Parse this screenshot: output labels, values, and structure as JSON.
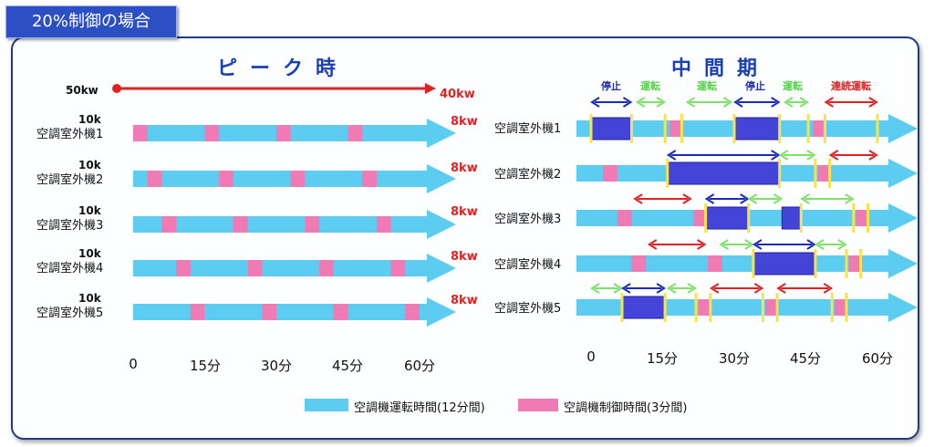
{
  "badge": "20%制御の場合",
  "left": {
    "title": "ピーク時",
    "scale_start": "50kw",
    "scale_end": "40kw",
    "units": [
      {
        "label": "空調室外機1",
        "cap": "10k",
        "kw": "8kw",
        "pink": [
          0
        ]
      },
      {
        "label": "空調室外機2",
        "cap": "10k",
        "kw": "8kw",
        "pink": [
          3
        ]
      },
      {
        "label": "空調室外機3",
        "cap": "10k",
        "kw": "8kw",
        "pink": [
          6
        ]
      },
      {
        "label": "空調室外機4",
        "cap": "10k",
        "kw": "8kw",
        "pink": [
          9
        ]
      },
      {
        "label": "空調室外機5",
        "cap": "10k",
        "kw": "8kw",
        "pink": [
          12
        ]
      }
    ],
    "ticks": [
      "0",
      "15分",
      "30分",
      "45分",
      "60分"
    ]
  },
  "right": {
    "title": "中間期",
    "annotations": {
      "stop": "停止",
      "run": "運転",
      "continuous": "連続運転"
    },
    "units": [
      {
        "label": "空調室外機1"
      },
      {
        "label": "空調室外機2"
      },
      {
        "label": "空調室外機3"
      },
      {
        "label": "空調室外機4"
      },
      {
        "label": "空調室外機5"
      }
    ],
    "ticks": [
      "0",
      "15分",
      "30分",
      "45分",
      "60分"
    ]
  },
  "legend": {
    "run": "空調機運転時間(12分間)",
    "control": "空調機制御時間(3分間)"
  },
  "colors": {
    "run": "#5ccdf0",
    "control": "#f07ab4",
    "stop": "#4444d8",
    "marker": "#f7e34a",
    "accent": "#e02222"
  }
}
